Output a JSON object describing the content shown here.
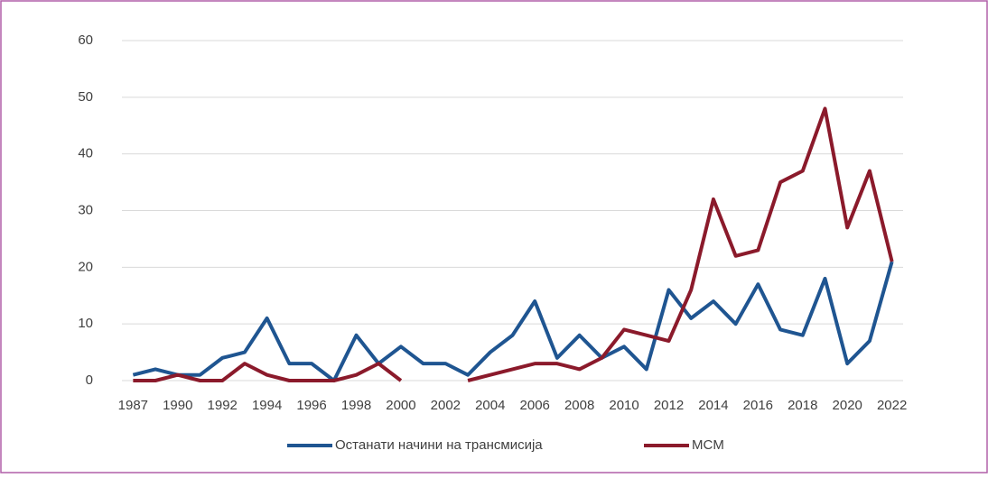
{
  "chart_data": {
    "type": "line",
    "categories": [
      "1987",
      null,
      "1990",
      null,
      "1992",
      null,
      "1994",
      null,
      "1996",
      null,
      "1998",
      null,
      "2000",
      null,
      "2002",
      null,
      "2004",
      null,
      "2006",
      null,
      "2008",
      null,
      "2010",
      null,
      "2012",
      null,
      "2014",
      null,
      "2016",
      null,
      "2018",
      null,
      "2020",
      null,
      "2022"
    ],
    "series": [
      {
        "name": "Останати начини на трансмисија",
        "color": "#1f5591",
        "values": [
          1,
          2,
          1,
          1,
          4,
          5,
          11,
          3,
          3,
          0,
          8,
          3,
          6,
          3,
          3,
          1,
          5,
          8,
          14,
          4,
          8,
          4,
          6,
          2,
          16,
          11,
          14,
          10,
          17,
          9,
          8,
          18,
          3,
          7,
          21
        ]
      },
      {
        "name": "MCM",
        "color": "#8b1a2b",
        "values": [
          0,
          0,
          1,
          0,
          0,
          3,
          1,
          0,
          0,
          0,
          1,
          3,
          0,
          null,
          null,
          0,
          1,
          2,
          3,
          3,
          2,
          4,
          9,
          8,
          7,
          16,
          32,
          22,
          23,
          35,
          37,
          48,
          27,
          37,
          21
        ]
      }
    ],
    "ylim": [
      0,
      60
    ],
    "yticks": [
      0,
      10,
      20,
      30,
      40,
      50,
      60
    ],
    "grid": true,
    "legend": "bottom"
  }
}
